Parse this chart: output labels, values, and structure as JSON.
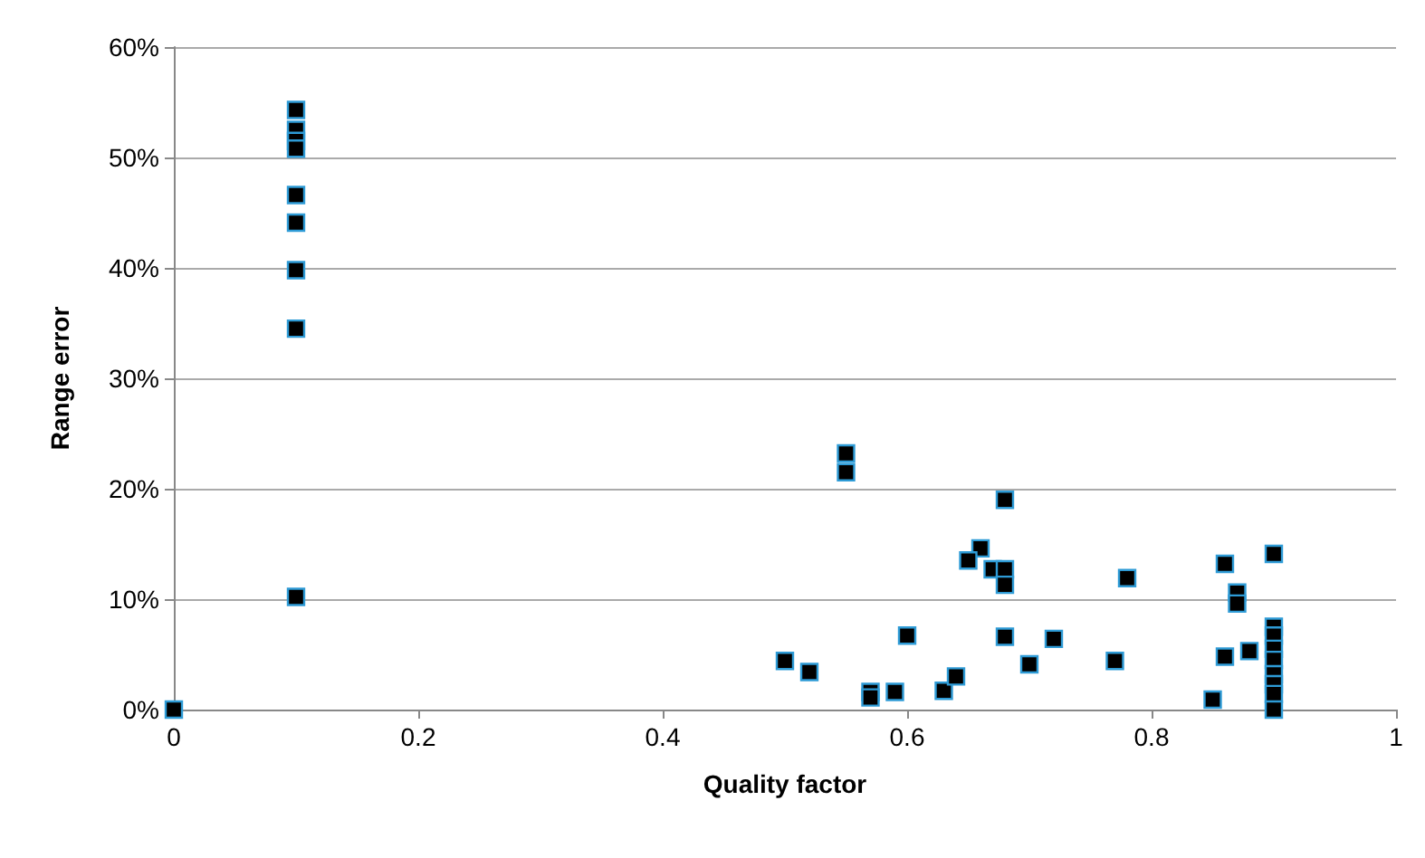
{
  "chart_data": {
    "type": "scatter",
    "xlabel": "Quality factor",
    "ylabel": "Range error",
    "xlim": [
      0,
      1
    ],
    "ylim": [
      0,
      60
    ],
    "xticks": [
      0,
      0.2,
      0.4,
      0.6,
      0.8,
      1
    ],
    "yticks": [
      {
        "value": 0,
        "label": "0%"
      },
      {
        "value": 10,
        "label": "10%"
      },
      {
        "value": 20,
        "label": "20%"
      },
      {
        "value": 30,
        "label": "30%"
      },
      {
        "value": 40,
        "label": "40%"
      },
      {
        "value": 50,
        "label": "50%"
      },
      {
        "value": 60,
        "label": "60%"
      }
    ],
    "grid": "y",
    "marker": "square",
    "series": [
      {
        "color": "#000000",
        "x": [
          0,
          0.1,
          0.1,
          0.1,
          0.1,
          0.1,
          0.1,
          0.1,
          0.1,
          0.1,
          0.55,
          0.55,
          0.68,
          0.66,
          0.65,
          0.67,
          0.68,
          0.68,
          0.6,
          0.68,
          0.72,
          0.5,
          0.52,
          0.7,
          0.57,
          0.57,
          0.59,
          0.63,
          0.64,
          0.78,
          0.86,
          0.9,
          0.87,
          0.87,
          0.77,
          0.86,
          0.88,
          0.85,
          0.9,
          0.9,
          0.9,
          0.9,
          0.9,
          0.9,
          0.9,
          0.9
        ],
        "values": [
          0,
          54.3,
          52.5,
          51.5,
          50.8,
          46.6,
          44.1,
          39.8,
          34.5,
          10.2,
          23.2,
          21.5,
          19.0,
          14.6,
          13.5,
          12.7,
          12.7,
          11.3,
          6.7,
          6.6,
          6.4,
          4.4,
          3.4,
          4.1,
          1.6,
          1.1,
          1.6,
          1.7,
          3.0,
          11.9,
          13.2,
          14.1,
          10.6,
          9.6,
          4.4,
          4.8,
          5.3,
          0.9,
          7.5,
          6.7,
          5.5,
          4.5,
          3.2,
          2.3,
          1.4,
          0
        ]
      }
    ]
  }
}
